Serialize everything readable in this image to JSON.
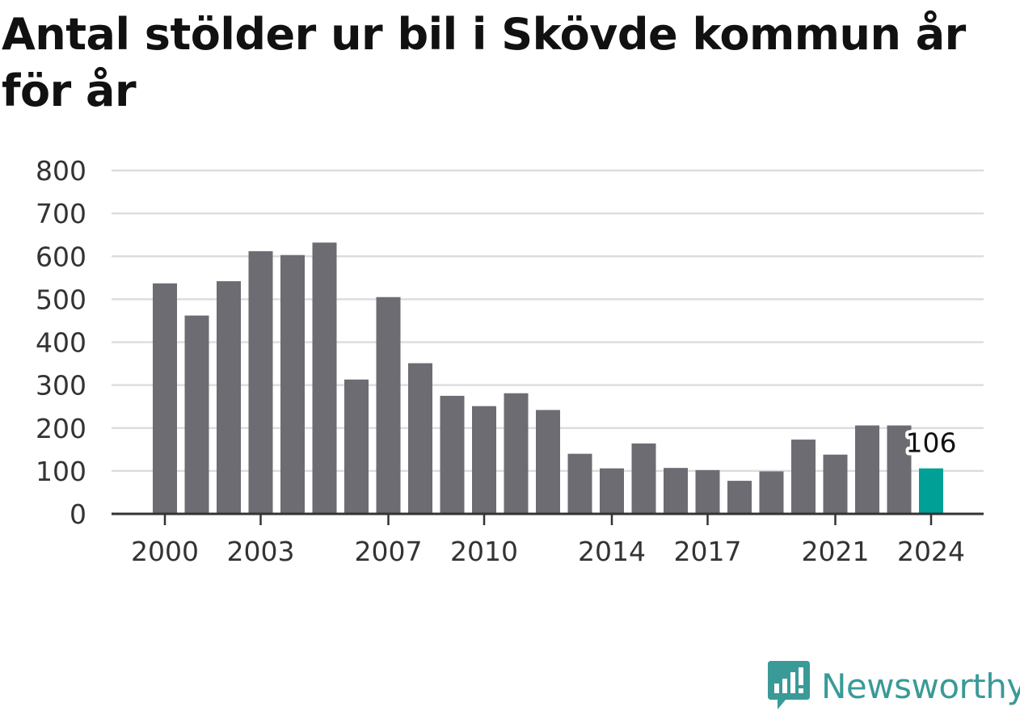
{
  "title": "Antal stölder ur bil i Skövde kommun år för år",
  "brand": {
    "name": "Newsworthy",
    "icon": "newsworthy-logo-icon",
    "color": "#3a9a98"
  },
  "colors": {
    "bar": "#6d6c72",
    "highlight": "#00a096",
    "grid": "#dddddd",
    "axis": "#333333"
  },
  "chart_data": {
    "type": "bar",
    "title": "Antal stölder ur bil i Skövde kommun år för år",
    "categories": [
      "2000",
      "2001",
      "2002",
      "2003",
      "2004",
      "2005",
      "2006",
      "2007",
      "2008",
      "2009",
      "2010",
      "2011",
      "2012",
      "2013",
      "2014",
      "2015",
      "2016",
      "2017",
      "2018",
      "2019",
      "2020",
      "2021",
      "2022",
      "2023",
      "2024"
    ],
    "values": [
      537,
      462,
      542,
      612,
      603,
      632,
      313,
      505,
      351,
      275,
      251,
      281,
      242,
      140,
      106,
      164,
      107,
      102,
      77,
      99,
      173,
      138,
      206,
      206,
      106
    ],
    "x_tick_labels": [
      "2000",
      "2003",
      "2007",
      "2010",
      "2014",
      "2017",
      "2021",
      "2024"
    ],
    "y_ticks": [
      0,
      100,
      200,
      300,
      400,
      500,
      600,
      700,
      800
    ],
    "ylim": [
      0,
      800
    ],
    "highlight": {
      "category": "2024",
      "label": "106"
    },
    "grid": true,
    "legend": "none"
  }
}
